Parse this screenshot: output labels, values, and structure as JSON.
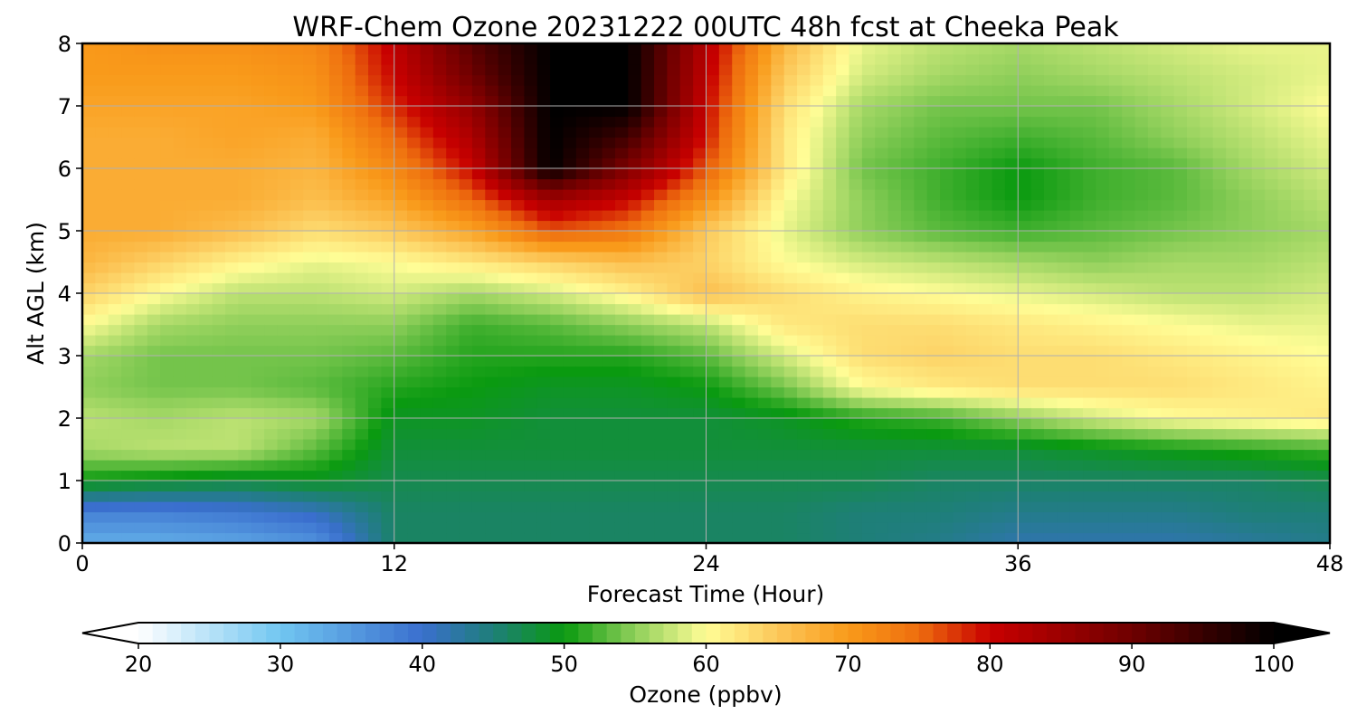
{
  "chart_data": {
    "type": "heatmap",
    "title": "WRF-Chem Ozone  20231222 00UTC 48h fcst at Cheeka Peak",
    "xlabel": "Forecast Time (Hour)",
    "ylabel": "Alt AGL (km)",
    "xlim": [
      0,
      48
    ],
    "ylim": [
      0,
      8
    ],
    "x_ticks": [
      "0",
      "12",
      "24",
      "36",
      "48"
    ],
    "y_ticks": [
      "0",
      "1",
      "2",
      "3",
      "4",
      "5",
      "6",
      "7",
      "8"
    ],
    "grid": true,
    "x_hours": [
      0,
      3,
      6,
      9,
      12,
      15,
      18,
      21,
      24,
      27,
      30,
      33,
      36,
      39,
      42,
      45,
      48
    ],
    "z_km": [
      0,
      0.5,
      1,
      1.5,
      2,
      2.5,
      3,
      3.5,
      4,
      4.5,
      5,
      5.5,
      6,
      6.5,
      7,
      7.5,
      8
    ],
    "ozone_ppbv": [
      [
        33,
        33,
        34,
        36,
        46,
        46,
        46,
        46,
        46,
        46,
        45,
        44,
        42,
        42,
        42,
        43,
        44
      ],
      [
        38,
        38,
        39,
        41,
        46,
        46,
        46,
        46,
        46,
        46,
        45,
        45,
        44,
        44,
        44,
        45,
        45
      ],
      [
        50,
        49,
        48,
        49,
        47,
        47,
        47,
        47,
        47,
        47,
        47,
        46,
        46,
        46,
        46,
        46,
        47
      ],
      [
        56,
        57,
        57,
        53,
        48,
        48,
        48,
        48,
        48,
        48,
        48,
        48,
        48,
        49,
        50,
        51,
        52
      ],
      [
        57,
        56,
        57,
        56,
        49,
        49,
        48,
        48,
        48,
        49,
        51,
        52,
        55,
        58,
        60,
        61,
        62
      ],
      [
        55,
        54,
        54,
        53,
        51,
        50,
        49,
        49,
        50,
        54,
        60,
        62,
        63,
        63,
        63,
        62,
        61
      ],
      [
        56,
        54,
        54,
        54,
        53,
        51,
        51,
        51,
        53,
        58,
        63,
        64,
        63,
        63,
        62,
        61,
        60
      ],
      [
        60,
        56,
        55,
        55,
        55,
        52,
        53,
        55,
        57,
        62,
        63,
        63,
        62,
        61,
        60,
        59,
        59
      ],
      [
        64,
        60,
        57,
        57,
        58,
        56,
        58,
        61,
        66,
        63,
        61,
        60,
        59,
        58,
        57,
        57,
        58
      ],
      [
        67,
        64,
        61,
        59,
        60,
        62,
        64,
        66,
        64,
        60,
        58,
        57,
        56,
        55,
        56,
        56,
        57
      ],
      [
        68,
        68,
        66,
        63,
        65,
        69,
        76,
        74,
        65,
        59,
        55,
        53,
        52,
        53,
        54,
        55,
        56
      ],
      [
        68,
        68,
        68,
        66,
        69,
        75,
        84,
        80,
        71,
        60,
        55,
        52,
        50,
        52,
        53,
        55,
        57
      ],
      [
        68,
        68,
        68,
        67,
        72,
        80,
        100,
        88,
        76,
        62,
        54,
        52,
        50,
        52,
        53,
        56,
        58
      ],
      [
        68,
        68,
        69,
        68,
        75,
        83,
        100,
        94,
        79,
        62,
        55,
        53,
        52,
        53,
        55,
        57,
        59
      ],
      [
        69,
        69,
        69,
        70,
        78,
        86,
        100,
        100,
        80,
        63,
        56,
        54,
        54,
        54,
        56,
        58,
        60
      ],
      [
        70,
        70,
        70,
        71,
        80,
        90,
        100,
        100,
        81,
        65,
        58,
        56,
        55,
        56,
        57,
        58,
        59
      ],
      [
        70,
        71,
        71,
        72,
        81,
        92,
        100,
        100,
        82,
        67,
        59,
        57,
        56,
        57,
        58,
        59,
        59
      ]
    ],
    "colorbar": {
      "label": "Ozone  (ppbv)",
      "min": 20,
      "max": 100,
      "ticks": [
        "20",
        "30",
        "40",
        "50",
        "60",
        "70",
        "80",
        "90",
        "100"
      ],
      "extend": "both",
      "stops": [
        {
          "v": 20,
          "c": "#ffffff"
        },
        {
          "v": 30,
          "c": "#71c6f1"
        },
        {
          "v": 40,
          "c": "#3a6fce"
        },
        {
          "v": 45,
          "c": "#1e7f78"
        },
        {
          "v": 50,
          "c": "#0a9a10"
        },
        {
          "v": 55,
          "c": "#8fcf5a"
        },
        {
          "v": 60,
          "c": "#fffd96"
        },
        {
          "v": 65,
          "c": "#fcc85a"
        },
        {
          "v": 70,
          "c": "#f99a1a"
        },
        {
          "v": 75,
          "c": "#ee6d0e"
        },
        {
          "v": 80,
          "c": "#c80000"
        },
        {
          "v": 90,
          "c": "#6e0000"
        },
        {
          "v": 100,
          "c": "#000000"
        }
      ]
    }
  }
}
